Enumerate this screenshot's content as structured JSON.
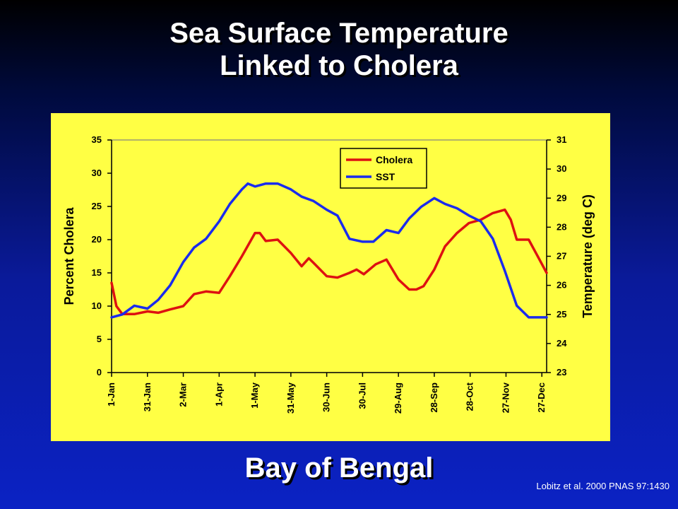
{
  "slide": {
    "title_line1": "Sea Surface Temperature",
    "title_line2": "Linked to Cholera",
    "subtitle": "Bay of Bengal",
    "citation": "Lobitz et al. 2000 PNAS 97:1430"
  },
  "colors": {
    "panel_background": "#ffff44",
    "cholera": "#dd1111",
    "sst": "#1a2bee"
  },
  "chart_data": {
    "type": "line",
    "xlabel": "",
    "ylabel_left": "Percent Cholera",
    "ylabel_right": "Temperature (deg C)",
    "ylim_left": [
      0,
      35
    ],
    "ylim_right": [
      23,
      31
    ],
    "yticks_left": [
      0,
      5,
      10,
      15,
      20,
      25,
      30,
      35
    ],
    "yticks_right": [
      23,
      24,
      25,
      26,
      27,
      28,
      29,
      30,
      31
    ],
    "x_tick_labels": [
      "1-Jan",
      "31-Jan",
      "2-Mar",
      "1-Apr",
      "1-May",
      "31-May",
      "30-Jun",
      "30-Jul",
      "29-Aug",
      "28-Sep",
      "28-Oct",
      "27-Nov",
      "27-Dec"
    ],
    "x_tick_days": [
      1,
      31,
      61,
      91,
      121,
      151,
      181,
      211,
      241,
      271,
      301,
      331,
      361
    ],
    "xlim": [
      1,
      365
    ],
    "legend": {
      "placement": "top-center",
      "entries": [
        "Cholera",
        "SST"
      ]
    },
    "series": [
      {
        "name": "Cholera",
        "axis": "left",
        "x": [
          1,
          5,
          10,
          20,
          31,
          40,
          50,
          61,
          70,
          80,
          91,
          100,
          110,
          121,
          125,
          130,
          140,
          151,
          160,
          166,
          170,
          181,
          190,
          200,
          206,
          212,
          222,
          231,
          241,
          250,
          256,
          262,
          271,
          280,
          290,
          300,
          310,
          320,
          330,
          335,
          340,
          350,
          356,
          365
        ],
        "y": [
          13.5,
          10,
          8.8,
          8.8,
          9.2,
          9,
          9.5,
          10,
          11.8,
          12.2,
          12,
          14.5,
          17.5,
          21,
          21,
          19.8,
          20,
          18,
          16,
          17.2,
          16.5,
          14.5,
          14.3,
          15,
          15.5,
          14.8,
          16.3,
          17,
          14,
          12.5,
          12.5,
          13,
          15.5,
          19,
          21,
          22.5,
          23,
          24,
          24.5,
          23,
          20,
          20,
          18,
          15
        ]
      },
      {
        "name": "SST",
        "axis": "right",
        "x": [
          1,
          10,
          20,
          31,
          40,
          50,
          61,
          70,
          80,
          91,
          100,
          110,
          115,
          121,
          130,
          140,
          151,
          160,
          170,
          181,
          190,
          200,
          211,
          220,
          231,
          241,
          250,
          260,
          271,
          280,
          290,
          300,
          310,
          320,
          330,
          340,
          350,
          356,
          365
        ],
        "y": [
          24.9,
          25,
          25.3,
          25.2,
          25.5,
          26,
          26.8,
          27.3,
          27.6,
          28.2,
          28.8,
          29.3,
          29.5,
          29.4,
          29.5,
          29.5,
          29.3,
          29.05,
          28.9,
          28.6,
          28.4,
          27.6,
          27.5,
          27.5,
          27.9,
          27.8,
          28.3,
          28.7,
          29.0,
          28.8,
          28.65,
          28.4,
          28.2,
          27.6,
          26.5,
          25.3,
          24.9,
          24.9,
          24.9
        ]
      }
    ]
  }
}
